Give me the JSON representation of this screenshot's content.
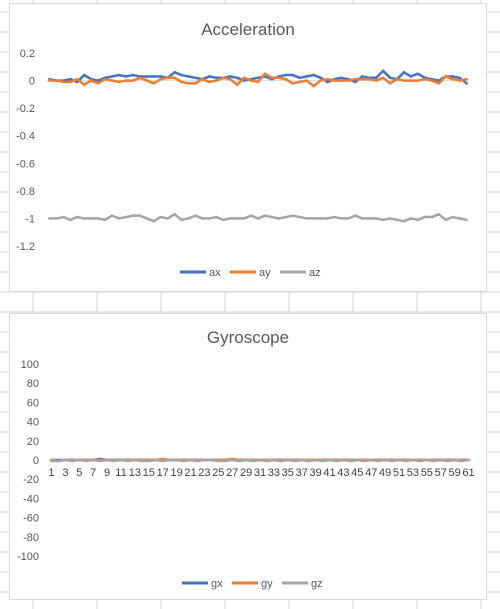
{
  "sheet": {
    "gridline_color": "#d4d4d4"
  },
  "chart_data": [
    {
      "type": "line",
      "title": "Acceleration",
      "xlabel": "",
      "ylabel": "",
      "ylim": [
        -1.2,
        0.2
      ],
      "yticks": [
        "0.2",
        "0",
        "-0.2",
        "-0.4",
        "-0.6",
        "-0.8",
        "-1",
        "-1.2"
      ],
      "x_tick_labels_visible": false,
      "grid": false,
      "legend": "bottom",
      "categories_count": 61,
      "series": [
        {
          "name": "ax",
          "color": "#4472c4",
          "values": [
            0.01,
            0.0,
            0.0,
            0.01,
            -0.01,
            0.04,
            0.01,
            0.0,
            0.02,
            0.03,
            0.04,
            0.03,
            0.04,
            0.03,
            0.03,
            0.03,
            0.03,
            0.02,
            0.06,
            0.04,
            0.03,
            0.02,
            0.01,
            0.03,
            0.02,
            0.02,
            0.03,
            0.02,
            0.0,
            0.01,
            0.02,
            0.03,
            0.01,
            0.03,
            0.04,
            0.04,
            0.02,
            0.03,
            0.04,
            0.02,
            -0.01,
            0.01,
            0.02,
            0.01,
            -0.01,
            0.03,
            0.02,
            0.02,
            0.07,
            0.02,
            0.01,
            0.06,
            0.03,
            0.05,
            0.02,
            0.01,
            0.0,
            0.03,
            0.03,
            0.02,
            -0.02
          ]
        },
        {
          "name": "ay",
          "color": "#ed7d31",
          "values": [
            0.0,
            0.0,
            -0.01,
            -0.01,
            0.01,
            -0.03,
            0.0,
            -0.02,
            0.01,
            0.0,
            -0.01,
            0.0,
            0.0,
            0.02,
            0.0,
            -0.02,
            0.01,
            0.02,
            0.02,
            -0.01,
            -0.02,
            -0.02,
            0.01,
            -0.01,
            0.0,
            0.02,
            0.01,
            -0.03,
            0.02,
            0.0,
            -0.01,
            0.05,
            0.02,
            0.02,
            0.01,
            -0.02,
            -0.01,
            0.0,
            -0.04,
            0.0,
            0.01,
            0.0,
            0.0,
            0.0,
            0.01,
            0.01,
            0.01,
            0.0,
            0.02,
            -0.02,
            0.01,
            0.0,
            0.0,
            0.0,
            0.01,
            0.0,
            -0.02,
            0.03,
            0.01,
            0.0,
            0.01
          ]
        },
        {
          "name": "az",
          "color": "#a5a5a5",
          "values": [
            -1.0,
            -1.0,
            -0.99,
            -1.01,
            -0.99,
            -1.0,
            -1.0,
            -1.0,
            -1.01,
            -0.98,
            -1.0,
            -0.99,
            -0.98,
            -0.98,
            -1.0,
            -1.02,
            -0.99,
            -1.0,
            -0.97,
            -1.01,
            -1.0,
            -0.98,
            -1.0,
            -1.0,
            -0.99,
            -1.01,
            -1.0,
            -1.0,
            -1.0,
            -0.98,
            -1.0,
            -0.98,
            -0.99,
            -1.0,
            -0.99,
            -0.98,
            -0.99,
            -1.0,
            -1.0,
            -1.0,
            -1.0,
            -0.99,
            -1.0,
            -1.0,
            -0.98,
            -1.0,
            -1.0,
            -1.0,
            -1.01,
            -1.0,
            -1.01,
            -1.02,
            -1.0,
            -1.01,
            -0.99,
            -0.99,
            -0.97,
            -1.01,
            -0.99,
            -1.0,
            -1.01
          ]
        }
      ]
    },
    {
      "type": "line",
      "title": "Gyroscope",
      "xlabel": "",
      "ylabel": "",
      "ylim": [
        -100,
        100
      ],
      "yticks": [
        "100",
        "80",
        "60",
        "40",
        "20",
        "0",
        "-20",
        "-40",
        "-60",
        "-80",
        "-100"
      ],
      "x_tick_labels": [
        "1",
        "3",
        "5",
        "7",
        "9",
        "11",
        "13",
        "15",
        "17",
        "19",
        "21",
        "23",
        "25",
        "27",
        "29",
        "31",
        "33",
        "35",
        "37",
        "39",
        "41",
        "43",
        "45",
        "47",
        "49",
        "51",
        "53",
        "55",
        "57",
        "59",
        "61"
      ],
      "grid": false,
      "legend": "bottom",
      "categories_count": 61,
      "series": [
        {
          "name": "gx",
          "color": "#4472c4",
          "values": [
            0,
            0,
            0,
            0,
            0,
            0,
            0,
            1,
            0,
            0,
            0,
            0,
            0,
            0,
            0,
            0,
            0,
            0,
            0,
            0,
            0,
            0,
            0,
            0,
            0,
            0,
            0,
            0,
            0,
            0,
            0,
            0,
            0,
            0,
            0,
            0,
            0,
            0,
            0,
            0,
            0,
            0,
            0,
            0,
            0,
            0,
            0,
            0,
            0,
            0,
            0,
            0,
            0,
            0,
            0,
            0,
            0,
            0,
            0,
            0,
            0
          ]
        },
        {
          "name": "gy",
          "color": "#ed7d31",
          "values": [
            0,
            -1,
            0,
            0,
            0,
            0,
            0,
            0,
            0,
            0,
            0,
            0,
            0,
            0,
            0,
            0,
            1,
            0,
            0,
            0,
            0,
            0,
            0,
            0,
            0,
            0,
            1,
            0,
            0,
            0,
            0,
            0,
            0,
            0,
            0,
            0,
            0,
            0,
            0,
            0,
            0,
            0,
            0,
            0,
            0,
            0,
            0,
            0,
            0,
            0,
            0,
            0,
            0,
            0,
            0,
            0,
            0,
            0,
            0,
            0,
            0
          ]
        },
        {
          "name": "gz",
          "color": "#a5a5a5",
          "values": [
            -1,
            -1,
            0,
            -1,
            0,
            -1,
            0,
            -1,
            0,
            -1,
            0,
            -1,
            0,
            -1,
            -1,
            0,
            -1,
            0,
            0,
            -1,
            0,
            -1,
            0,
            0,
            -1,
            -1,
            0,
            -1,
            0,
            -1,
            0,
            -1,
            0,
            -1,
            0,
            -1,
            0,
            -1,
            0,
            -1,
            0,
            -1,
            0,
            -1,
            0,
            -1,
            0,
            -1,
            0,
            -1,
            0,
            -1,
            0,
            -1,
            0,
            -1,
            0,
            -1,
            0,
            -1,
            0
          ]
        }
      ]
    }
  ]
}
